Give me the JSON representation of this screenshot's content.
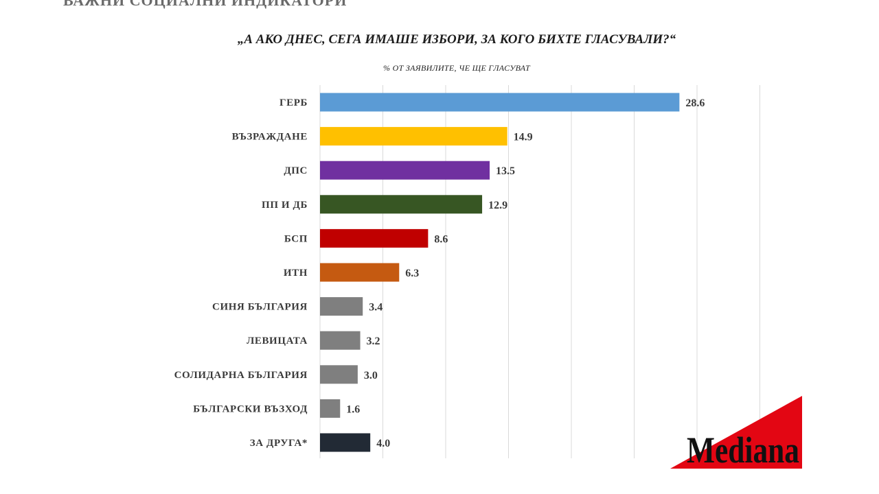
{
  "header": {
    "top_strip_text": "ВАЖНИ СОЦИАЛНИ ИНДИКАТОРИ"
  },
  "chart_data": {
    "type": "bar",
    "orientation": "horizontal",
    "title": "„А АКО ДНЕС, СЕГА ИМАШЕ ИЗБОРИ, ЗА КОГО БИХТЕ ГЛАСУВАЛИ?“",
    "subtitle": "% ОТ ЗАЯВИЛИТЕ, ЧЕ ЩЕ ГЛАСУВАТ",
    "categories": [
      "ГЕРБ",
      "ВЪЗРАЖДАНЕ",
      "ДПС",
      "ПП И ДБ",
      "БСП",
      "ИТН",
      "СИНЯ БЪЛГАРИЯ",
      "ЛЕВИЦАТА",
      "СОЛИДАРНА БЪЛГАРИЯ",
      "БЪЛГАРСКИ ВЪЗХОД",
      "ЗА ДРУГА*"
    ],
    "values": [
      28.6,
      14.9,
      13.5,
      12.9,
      8.6,
      6.3,
      3.4,
      3.2,
      3.0,
      1.6,
      4.0
    ],
    "value_labels": [
      "28.6",
      "14.9",
      "13.5",
      "12.9",
      "8.6",
      "6.3",
      "3.4",
      "3.2",
      "3.0",
      "1.6",
      "4.0"
    ],
    "colors": [
      "#5b9bd5",
      "#ffc000",
      "#7030a0",
      "#375623",
      "#c00000",
      "#c55a11",
      "#7f7f7f",
      "#7f7f7f",
      "#7f7f7f",
      "#7f7f7f",
      "#222a35"
    ],
    "xlim": [
      0,
      35
    ],
    "gridline_step": 5,
    "grid": true,
    "legend": "none",
    "xlabel": "",
    "ylabel": ""
  },
  "logo": {
    "text": "Mediana",
    "colors": {
      "triangle": "#e30613",
      "text": "#111111"
    }
  }
}
